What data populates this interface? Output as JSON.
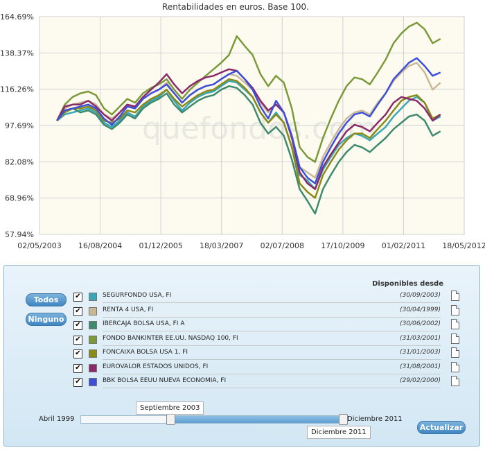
{
  "chart_data": {
    "type": "line",
    "title": "Rentabilidades en euros. Base 100.",
    "watermark": "quefondos.com",
    "y_ticks": [
      "164.69%",
      "138.37%",
      "116.26%",
      "97.69%",
      "82.08%",
      "68.96%",
      "57.94%"
    ],
    "y_tick_values": [
      164.69,
      138.37,
      116.26,
      97.69,
      82.08,
      68.96,
      57.94
    ],
    "ylim": [
      57.94,
      164.69
    ],
    "y_scale": "log",
    "x_ticks": [
      "02/05/2003",
      "16/08/2004",
      "01/12/2005",
      "18/03/2007",
      "02/07/2008",
      "17/10/2009",
      "01/02/2011",
      "18/05/2012"
    ],
    "x_range": [
      "2003-05-02",
      "2012-05-18"
    ],
    "x": [
      "2003-09",
      "2003-11",
      "2004-01",
      "2004-03",
      "2004-05",
      "2004-07",
      "2004-09",
      "2004-11",
      "2005-01",
      "2005-03",
      "2005-05",
      "2005-07",
      "2005-09",
      "2005-11",
      "2006-01",
      "2006-03",
      "2006-05",
      "2006-07",
      "2006-09",
      "2006-11",
      "2007-01",
      "2007-03",
      "2007-05",
      "2007-07",
      "2007-09",
      "2007-11",
      "2008-01",
      "2008-03",
      "2008-05",
      "2008-07",
      "2008-09",
      "2008-11",
      "2009-01",
      "2009-03",
      "2009-05",
      "2009-07",
      "2009-09",
      "2009-11",
      "2010-01",
      "2010-03",
      "2010-05",
      "2010-07",
      "2010-09",
      "2010-11",
      "2011-01",
      "2011-03",
      "2011-05",
      "2011-07",
      "2011-09",
      "2011-11"
    ],
    "series": [
      {
        "name": "SEGURFONDO USA, FI",
        "color": "#3aa6b8",
        "values": [
          100,
          103,
          104,
          105,
          106,
          104,
          99,
          97,
          100,
          104,
          102,
          107,
          110,
          112,
          116,
          110,
          105,
          109,
          112,
          114,
          115,
          118,
          121,
          120,
          116,
          112,
          104,
          99,
          104,
          99,
          88,
          77,
          75,
          72,
          79,
          84,
          89,
          92,
          94,
          93,
          91,
          94,
          97,
          102,
          106,
          110,
          112,
          109,
          100,
          102
        ]
      },
      {
        "name": "RENTA 4 USA, FI",
        "color": "#c8b896",
        "values": [
          100,
          106,
          108,
          109,
          110,
          108,
          103,
          101,
          104,
          108,
          106,
          111,
          114,
          116,
          120,
          114,
          109,
          113,
          116,
          118,
          119,
          122,
          125,
          124,
          120,
          116,
          109,
          104,
          108,
          104,
          93,
          80,
          78,
          76,
          84,
          90,
          96,
          101,
          104,
          105,
          103,
          109,
          114,
          121,
          126,
          130,
          132,
          126,
          116,
          120
        ]
      },
      {
        "name": "IBERCAJA BOLSA USA, FI A",
        "color": "#3d8a6e",
        "values": [
          100,
          105,
          106,
          104,
          105,
          103,
          98,
          96,
          99,
          103,
          101,
          106,
          109,
          111,
          114,
          108,
          104,
          107,
          110,
          112,
          113,
          116,
          118,
          117,
          113,
          108,
          99,
          94,
          97,
          93,
          83,
          72,
          68,
          64,
          72,
          77,
          82,
          86,
          89,
          88,
          86,
          89,
          92,
          96,
          99,
          102,
          103,
          100,
          93,
          95
        ]
      },
      {
        "name": "FONDO BANKINTER EE.UU. NASDAQ 100, FI",
        "color": "#7a9a3a",
        "values": [
          100,
          108,
          112,
          114,
          115,
          113,
          106,
          103,
          107,
          111,
          109,
          114,
          117,
          119,
          122,
          116,
          111,
          116,
          120,
          124,
          128,
          132,
          137,
          150,
          143,
          137,
          125,
          118,
          124,
          120,
          106,
          88,
          84,
          82,
          92,
          101,
          110,
          118,
          123,
          122,
          119,
          126,
          134,
          145,
          152,
          157,
          160,
          155,
          145,
          148
        ]
      },
      {
        "name": "FONCAIXA BOLSA USA 1, FI",
        "color": "#8a8a18",
        "values": [
          100,
          104,
          106,
          106,
          107,
          105,
          100,
          99,
          101,
          105,
          104,
          108,
          111,
          113,
          116,
          111,
          107,
          110,
          113,
          115,
          116,
          119,
          122,
          121,
          117,
          112,
          104,
          99,
          103,
          99,
          88,
          74,
          71,
          69,
          77,
          82,
          87,
          91,
          94,
          94,
          92,
          96,
          100,
          105,
          110,
          112,
          113,
          109,
          101,
          103
        ]
      },
      {
        "name": "EUROVALOR ESTADOS UNIDOS, FI",
        "color": "#8a2a6a",
        "values": [
          100,
          107,
          108,
          108,
          110,
          107,
          103,
          100,
          104,
          108,
          107,
          112,
          116,
          120,
          125,
          119,
          114,
          118,
          121,
          123,
          124,
          126,
          128,
          127,
          122,
          117,
          110,
          105,
          108,
          104,
          92,
          78,
          74,
          72,
          80,
          85,
          90,
          95,
          98,
          97,
          95,
          99,
          103,
          109,
          112,
          111,
          110,
          106,
          100,
          103
        ]
      },
      {
        "name": "BBK BOLSA EEUU NUEVA ECONOMIA, FI",
        "color": "#3d4fd8",
        "values": [
          100,
          105,
          106,
          107,
          108,
          106,
          101,
          98,
          102,
          107,
          106,
          111,
          114,
          116,
          119,
          114,
          109,
          113,
          116,
          118,
          119,
          122,
          125,
          127,
          122,
          116,
          107,
          101,
          110,
          104,
          93,
          80,
          76,
          74,
          82,
          88,
          94,
          99,
          103,
          104,
          102,
          108,
          114,
          122,
          127,
          132,
          135,
          130,
          124,
          126
        ]
      }
    ]
  },
  "panel": {
    "todos_label": "Todos",
    "ninguno_label": "Ninguno",
    "available_header": "Disponibles desde",
    "actualizar_label": "Actualizar",
    "funds": [
      {
        "name": "SEGURFONDO USA, FI",
        "color": "#3aa6b8",
        "date": "(30/09/2003)",
        "checked": "✔"
      },
      {
        "name": "RENTA 4 USA, FI",
        "color": "#c8b896",
        "date": "(30/04/1999)",
        "checked": "✔"
      },
      {
        "name": "IBERCAJA BOLSA USA, FI A",
        "color": "#3d8a6e",
        "date": "(30/06/2002)",
        "checked": "✔"
      },
      {
        "name": "FONDO BANKINTER EE.UU. NASDAQ 100, FI",
        "color": "#7a9a3a",
        "date": "(31/03/2001)",
        "checked": "✔"
      },
      {
        "name": "FONCAIXA BOLSA USA 1, FI",
        "color": "#8a8a18",
        "date": "(31/01/2003)",
        "checked": "✔"
      },
      {
        "name": "EUROVALOR ESTADOS UNIDOS, FI",
        "color": "#8a2a6a",
        "date": "(31/08/2001)",
        "checked": "✔"
      },
      {
        "name": "BBK BOLSA EEUU NUEVA ECONOMIA, FI",
        "color": "#3d4fd8",
        "date": "(29/02/2000)",
        "checked": "✔"
      }
    ],
    "slider": {
      "min_label": "Abril 1999",
      "max_label": "Diciembre 2011",
      "start_value": "Septiembre 2003",
      "end_value": "Diciembre 2011",
      "start_fraction": 0.34,
      "end_fraction": 1.0
    }
  }
}
